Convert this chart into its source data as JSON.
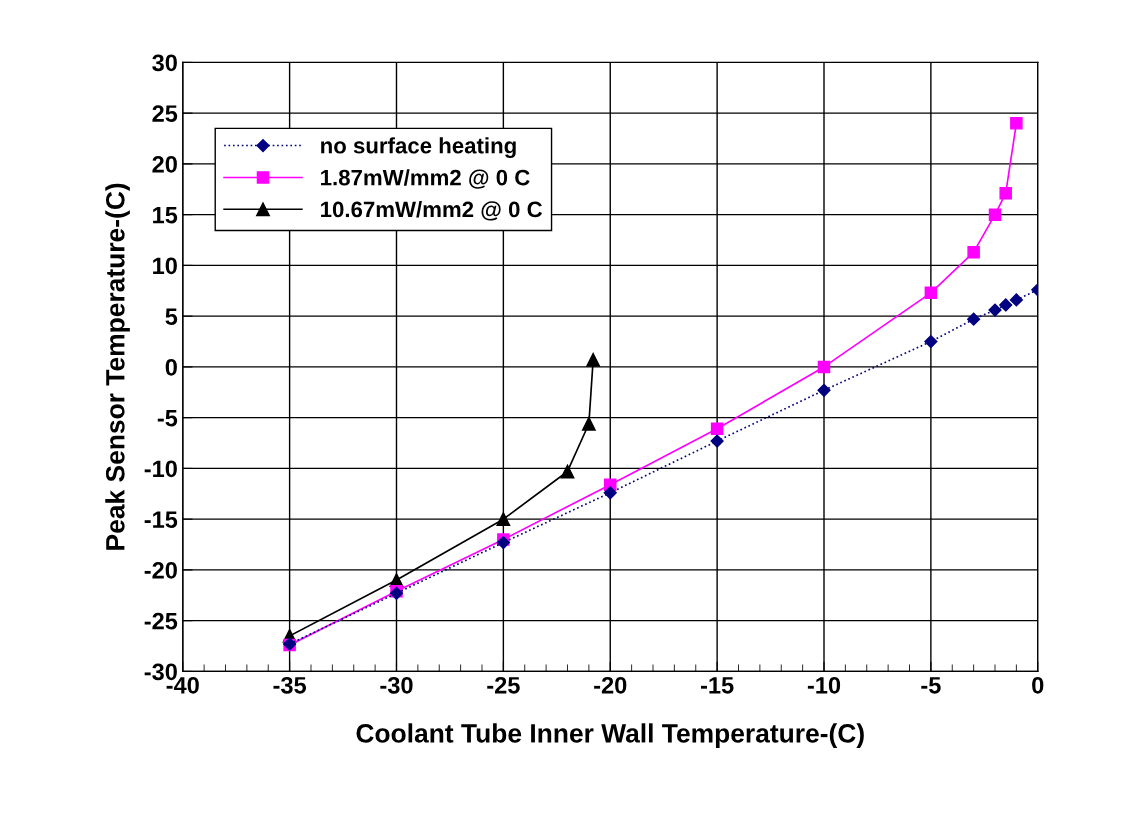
{
  "chart_data": {
    "type": "line",
    "xlabel": "Coolant Tube Inner Wall Temperature-(C)",
    "ylabel": "Peak Sensor Temperature-(C)",
    "xlim": [
      -40,
      0
    ],
    "ylim": [
      -30,
      30
    ],
    "xticks": [
      -40,
      {
        "value": -39,
        "label": null
      },
      {
        "value": -38,
        "label": null
      },
      {
        "value": -37,
        "label": null
      },
      {
        "value": -36,
        "label": null
      },
      -35,
      {
        "value": -34,
        "label": null
      },
      {
        "value": -33,
        "label": null
      },
      {
        "value": -32,
        "label": null
      },
      {
        "value": -31,
        "label": null
      },
      -30,
      {
        "value": -29,
        "label": null
      },
      {
        "value": -28,
        "label": null
      },
      {
        "value": -27,
        "label": null
      },
      {
        "value": -26,
        "label": null
      },
      -25,
      {
        "value": -24,
        "label": null
      },
      {
        "value": -23,
        "label": null
      },
      {
        "value": -22,
        "label": null
      },
      {
        "value": -21,
        "label": null
      },
      -20,
      {
        "value": -19,
        "label": null
      },
      {
        "value": -18,
        "label": null
      },
      {
        "value": -17,
        "label": null
      },
      {
        "value": -16,
        "label": null
      },
      -15,
      {
        "value": -14,
        "label": null
      },
      {
        "value": -13,
        "label": null
      },
      {
        "value": -12,
        "label": null
      },
      {
        "value": -11,
        "label": null
      },
      -10,
      {
        "value": -9,
        "label": null
      },
      {
        "value": -8,
        "label": null
      },
      {
        "value": -7,
        "label": null
      },
      {
        "value": -6,
        "label": null
      },
      -5,
      {
        "value": -4,
        "label": null
      },
      {
        "value": -3,
        "label": null
      },
      {
        "value": -2,
        "label": null
      },
      {
        "value": -1,
        "label": null
      },
      0
    ],
    "yticks": [
      -30,
      -25,
      -20,
      -15,
      -10,
      -5,
      0,
      5,
      10,
      15,
      20,
      25,
      30
    ],
    "grid": true,
    "legend": "top left",
    "series": [
      {
        "name": "no surface heating",
        "color": "#000080",
        "marker": "diamond",
        "line_style": "dotted",
        "x": [
          -35,
          -30,
          -25,
          -20,
          -15,
          -10,
          -5,
          -3,
          -2,
          -1.5,
          -1,
          0
        ],
        "values": [
          -27.3,
          -22.3,
          -17.3,
          -12.4,
          -7.3,
          -2.3,
          2.5,
          4.7,
          5.6,
          6.1,
          6.6,
          7.6
        ]
      },
      {
        "name": "1.87mW/mm2 @ 0 C",
        "color": "#ff00ff",
        "marker": "square",
        "line_style": "solid",
        "x": [
          -35,
          -30,
          -25,
          -20,
          -15,
          -10,
          -5,
          -3,
          -2,
          -1.5,
          -1
        ],
        "values": [
          -27.4,
          -22.1,
          -17,
          -11.6,
          -6.1,
          0,
          7.3,
          11.3,
          15,
          17.1,
          24
        ]
      },
      {
        "name": "10.67mW/mm2 @ 0 C",
        "color": "#000000",
        "marker": "triangle",
        "line_style": "solid",
        "x": [
          -35,
          -30,
          -25,
          -22,
          -21,
          -20.8
        ],
        "values": [
          -26.5,
          -21,
          -15,
          -10.3,
          -5.6,
          0.7
        ]
      }
    ]
  }
}
